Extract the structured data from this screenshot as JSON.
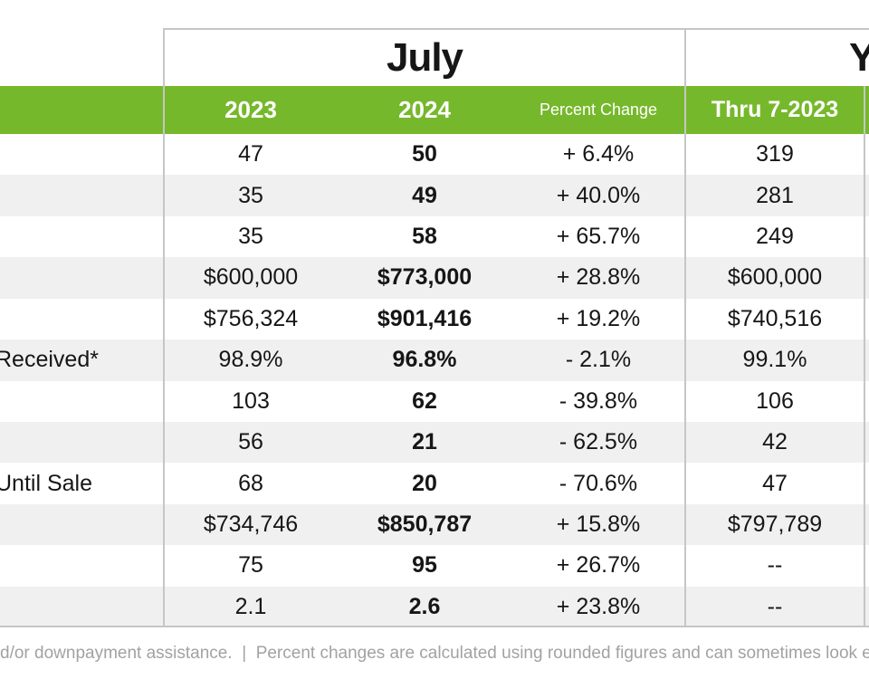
{
  "page": {
    "section_titles": {
      "july": "July",
      "ytd_visible": "Y"
    },
    "columns": {
      "y2023": "2023",
      "y2024": "2024",
      "percent_change": "Percent Change",
      "thru_2023": "Thru 7-2023"
    },
    "rows": [
      {
        "label": "",
        "y2023": "47",
        "y2024": "50",
        "pct": "+ 6.4%",
        "thru": "319"
      },
      {
        "label": "",
        "y2023": "35",
        "y2024": "49",
        "pct": "+ 40.0%",
        "thru": "281"
      },
      {
        "label": "",
        "y2023": "35",
        "y2024": "58",
        "pct": "+ 65.7%",
        "thru": "249"
      },
      {
        "label": "",
        "y2023": "$600,000",
        "y2024": "$773,000",
        "pct": "+ 28.8%",
        "thru": "$600,000"
      },
      {
        "label": "",
        "y2023": "$756,324",
        "y2024": "$901,416",
        "pct": "+ 19.2%",
        "thru": "$740,516"
      },
      {
        "label": "Received*",
        "y2023": "98.9%",
        "y2024": "96.8%",
        "pct": "- 2.1%",
        "thru": "99.1%"
      },
      {
        "label": "",
        "y2023": "103",
        "y2024": "62",
        "pct": "- 39.8%",
        "thru": "106"
      },
      {
        "label": "",
        "y2023": "56",
        "y2024": "21",
        "pct": "- 62.5%",
        "thru": "42"
      },
      {
        "label": "Until Sale",
        "y2023": "68",
        "y2024": "20",
        "pct": "- 70.6%",
        "thru": "47"
      },
      {
        "label": "",
        "y2023": "$734,746",
        "y2024": "$850,787",
        "pct": "+ 15.8%",
        "thru": "$797,789"
      },
      {
        "label": "",
        "y2023": "75",
        "y2024": "95",
        "pct": "+ 26.7%",
        "thru": "--"
      },
      {
        "label": "",
        "y2023": "2.1",
        "y2024": "2.6",
        "pct": "+ 23.8%",
        "thru": "--"
      }
    ],
    "footnote": "d/or downpayment assistance.  |  Percent changes are calculated using rounded figures and can sometimes look e",
    "colors": {
      "header_green": "#76b82b",
      "row_stripe": "#f0f0f0",
      "border_gray": "#c6c6c6",
      "footnote_gray": "#a2a2a2",
      "text_black": "#161616"
    }
  }
}
